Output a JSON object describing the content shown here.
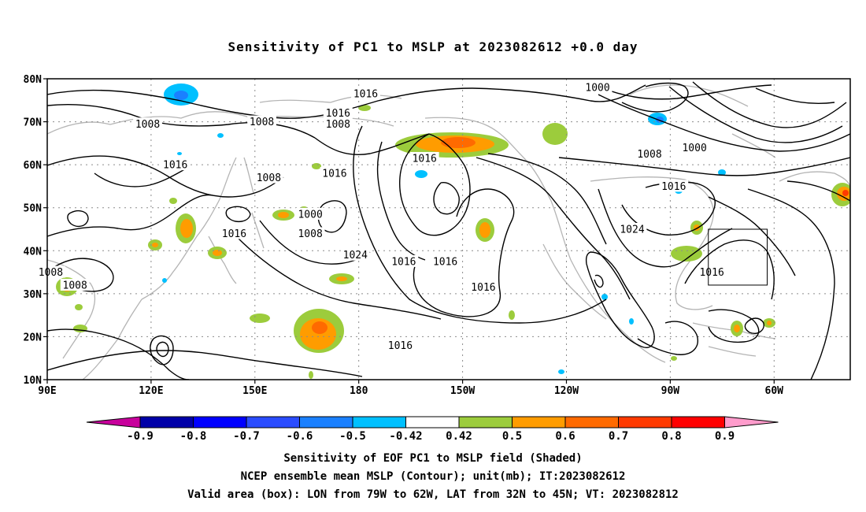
{
  "title": "Sensitivity of PC1 to MSLP at 2023082612 +0.0 day",
  "map": {
    "lat_labels": [
      "80N",
      "70N",
      "60N",
      "50N",
      "40N",
      "30N",
      "20N",
      "10N"
    ],
    "lon_labels": [
      "90E",
      "120E",
      "150E",
      "180",
      "150W",
      "120W",
      "90W",
      "60W"
    ],
    "lon_range_deg_east": [
      90,
      322
    ],
    "lat_range": [
      10,
      80
    ],
    "grid": "dotted",
    "coastline_color": "#b4b4b4",
    "contour_color": "#000000",
    "contour_labels": [
      {
        "text": "1016",
        "lon": 182,
        "lat": 76.5
      },
      {
        "text": "1000",
        "lon": 249,
        "lat": 78
      },
      {
        "text": "1008",
        "lon": 119,
        "lat": 69.5
      },
      {
        "text": "1008",
        "lon": 152,
        "lat": 70
      },
      {
        "text": "1016",
        "lon": 174,
        "lat": 72
      },
      {
        "text": "1008",
        "lon": 174,
        "lat": 69.5
      },
      {
        "text": "1016",
        "lon": 127,
        "lat": 60
      },
      {
        "text": "1008",
        "lon": 154,
        "lat": 57
      },
      {
        "text": "1016",
        "lon": 173,
        "lat": 58
      },
      {
        "text": "1016",
        "lon": 199,
        "lat": 61.5
      },
      {
        "text": "1008",
        "lon": 264,
        "lat": 62.5
      },
      {
        "text": "1000",
        "lon": 277,
        "lat": 64
      },
      {
        "text": "1016",
        "lon": 271,
        "lat": 55
      },
      {
        "text": "1000",
        "lon": 166,
        "lat": 48.5
      },
      {
        "text": "1008",
        "lon": 166,
        "lat": 44
      },
      {
        "text": "1016",
        "lon": 144,
        "lat": 44
      },
      {
        "text": "1024",
        "lon": 259,
        "lat": 45
      },
      {
        "text": "1024",
        "lon": 179,
        "lat": 39
      },
      {
        "text": "1016",
        "lon": 193,
        "lat": 37.5
      },
      {
        "text": "1016",
        "lon": 205,
        "lat": 37.5
      },
      {
        "text": "1016",
        "lon": 216,
        "lat": 31.5
      },
      {
        "text": "1016",
        "lon": 282,
        "lat": 35
      },
      {
        "text": "1008",
        "lon": 91,
        "lat": 35
      },
      {
        "text": "1008",
        "lon": 98,
        "lat": 32
      },
      {
        "text": "1016",
        "lon": 192,
        "lat": 18
      }
    ],
    "valid_box": {
      "lon_w": 79,
      "lon_e": 62,
      "lat_s": 32,
      "lat_n": 45
    }
  },
  "colorbar": {
    "colors": [
      "#c8009c",
      "#0000a8",
      "#0000ff",
      "#2a4cff",
      "#1a80ff",
      "#00c0ff",
      "#ffffff",
      "#9ccc3c",
      "#ff9c00",
      "#ff6a00",
      "#ff3a00",
      "#ff0000",
      "#ff9ccc"
    ],
    "labels": [
      "-0.9",
      "-0.8",
      "-0.7",
      "-0.6",
      "-0.5",
      "-0.42",
      "0.42",
      "0.5",
      "0.6",
      "0.7",
      "0.8",
      "0.9"
    ]
  },
  "captions": {
    "line1": "Sensitivity of EOF PC1 to MSLP field (Shaded)",
    "line2": "NCEP ensemble mean MSLP (Contour); unit(mb); IT:2023082612",
    "line3": "Valid area (box): LON from 79W to 62W, LAT from 32N to 45N; VT: 2023082812"
  }
}
